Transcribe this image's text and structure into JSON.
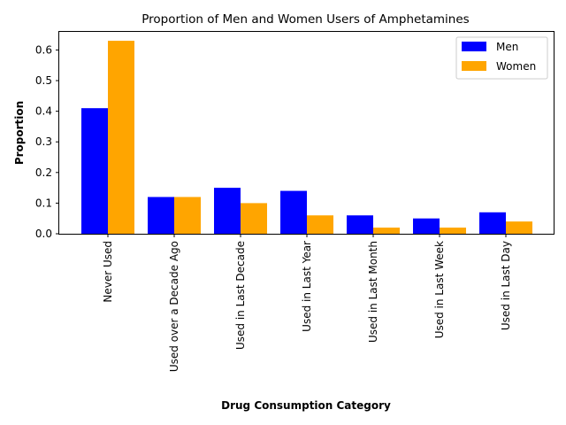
{
  "chart_data": {
    "type": "bar",
    "title": "Proportion of Men and Women Users of Amphetamines",
    "xlabel": "Drug Consumption Category",
    "ylabel": "Proportion",
    "categories": [
      "Never Used",
      "Used over a Decade Ago",
      "Used in Last Decade",
      "Used in Last Year",
      "Used in Last Month",
      "Used in Last Week",
      "Used in Last Day"
    ],
    "series": [
      {
        "name": "Men",
        "color": "#0000ff",
        "values": [
          0.41,
          0.12,
          0.15,
          0.14,
          0.06,
          0.05,
          0.07
        ]
      },
      {
        "name": "Women",
        "color": "#ffa500",
        "values": [
          0.63,
          0.12,
          0.1,
          0.06,
          0.02,
          0.02,
          0.04
        ]
      }
    ],
    "ylim": [
      0,
      0.662
    ],
    "yticks": [
      "0.0",
      "0.1",
      "0.2",
      "0.3",
      "0.4",
      "0.5",
      "0.6"
    ],
    "legend_position": "top-right",
    "grid": false
  }
}
